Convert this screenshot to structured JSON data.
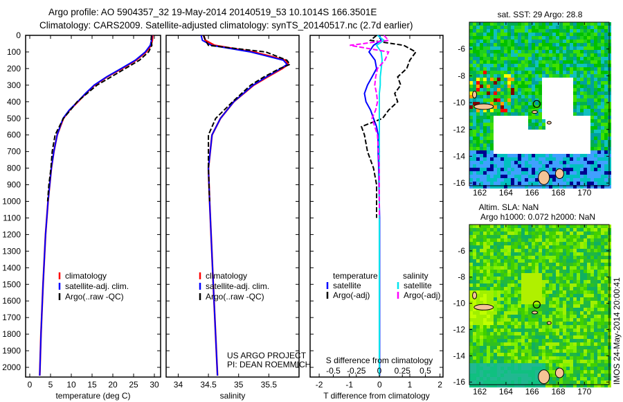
{
  "header": {
    "title_line1": "Argo profile: AO 5904357_32 19-May-2014 20140519_53 10.1014S 166.3501E",
    "title_line2": "Climatology: CARS2009. Satellite-adjusted climatology: synTS_20140517.nc (2.7d earlier)"
  },
  "colors": {
    "climatology": "#ff0000",
    "satellite": "#0000ff",
    "argo": "#000000",
    "sal_satellite": "#00e5ee",
    "sal_argo": "#ff00ff",
    "land": "#f5c496"
  },
  "depth_axis": {
    "ticks": [
      0,
      100,
      200,
      300,
      400,
      500,
      600,
      700,
      800,
      900,
      1000,
      1100,
      1200,
      1300,
      1400,
      1500,
      1600,
      1700,
      1800,
      1900,
      2000
    ],
    "range": [
      0,
      2060
    ]
  },
  "chart_data": [
    {
      "type": "line",
      "name": "temperature",
      "xlabel": "temperature (deg C)",
      "xlim": [
        -1,
        31.5
      ],
      "xticks": [
        0,
        5,
        10,
        15,
        20,
        25,
        30
      ],
      "depth": [
        0,
        30,
        60,
        100,
        150,
        200,
        250,
        300,
        350,
        400,
        450,
        500,
        600,
        700,
        800,
        900,
        1000,
        1200,
        1500,
        1800,
        2050
      ],
      "series": [
        {
          "name": "climatology",
          "values": [
            29.6,
            29.5,
            29.2,
            28.0,
            25.6,
            22.2,
            18.6,
            15.6,
            13.5,
            11.6,
            9.6,
            8.1,
            6.6,
            5.8,
            5.2,
            4.8,
            4.4,
            3.8,
            3.2,
            2.7,
            2.4
          ]
        },
        {
          "name": "satellite-adj. clim.",
          "values": [
            29.4,
            29.3,
            29.0,
            27.8,
            25.4,
            22.0,
            18.5,
            15.5,
            13.4,
            11.5,
            9.5,
            8.0,
            6.6,
            5.8,
            5.2,
            4.8,
            4.4,
            3.8,
            3.2,
            2.7,
            2.4
          ]
        },
        {
          "name": "Argo(..raw -QC)",
          "values": [
            29.3,
            29.2,
            29.4,
            28.6,
            26.4,
            23.0,
            19.6,
            16.2,
            13.8,
            11.4,
            9.8,
            8.1,
            6.1,
            5.4,
            5.1,
            4.6,
            4.3,
            null,
            null,
            null,
            null
          ]
        }
      ],
      "legend": [
        "climatology",
        "satellite-adj. clim.",
        "Argo(..raw -QC)"
      ]
    },
    {
      "type": "line",
      "name": "salinity",
      "xlabel": "salinity",
      "xlim": [
        33.8,
        36.0
      ],
      "xticks": [
        34,
        34.5,
        35,
        35.5
      ],
      "depth": [
        0,
        30,
        60,
        100,
        150,
        175,
        200,
        250,
        300,
        400,
        500,
        600,
        800,
        1000,
        1500,
        2050
      ],
      "series": [
        {
          "name": "climatology",
          "values": [
            34.42,
            34.45,
            34.6,
            35.25,
            35.78,
            35.82,
            35.72,
            35.48,
            35.25,
            34.92,
            34.7,
            34.56,
            34.5,
            34.52,
            34.58,
            34.65
          ]
        },
        {
          "name": "satellite-adj. clim.",
          "values": [
            34.38,
            34.4,
            34.55,
            35.2,
            35.74,
            35.8,
            35.7,
            35.46,
            35.24,
            34.92,
            34.7,
            34.56,
            34.5,
            34.52,
            34.58,
            34.65
          ]
        },
        {
          "name": "Argo(..raw -QC)",
          "values": [
            34.42,
            34.45,
            34.5,
            35.45,
            35.8,
            35.85,
            35.68,
            35.42,
            35.2,
            34.9,
            34.62,
            34.5,
            34.5,
            34.52,
            null,
            null
          ]
        }
      ],
      "legend": [
        "climatology",
        "satellite-adj. clim.",
        "Argo(..raw -QC)"
      ],
      "annotation": [
        "US ARGO PROJECT",
        "PI: DEAN ROEMMICH"
      ]
    },
    {
      "type": "line",
      "name": "difference",
      "xlabel": "T difference from climatology",
      "xlim": [
        -2.3,
        2.1
      ],
      "xticks": [
        -2,
        -1,
        0,
        1,
        2
      ],
      "xlabel2": "S difference from climatology",
      "xticks2": [
        -0.5,
        -0.25,
        0,
        0.25,
        0.5
      ],
      "depth": [
        0,
        30,
        60,
        100,
        150,
        200,
        250,
        300,
        350,
        400,
        450,
        500,
        550,
        600,
        700,
        800,
        900,
        1000,
        1100,
        1200,
        1500,
        2050
      ],
      "series": [
        {
          "name": "temperature satellite",
          "values": [
            0,
            0.05,
            -0.2,
            -0.35,
            -0.15,
            -0.1,
            -0.25,
            -0.4,
            -0.5,
            -0.45,
            -0.3,
            -0.2,
            -0.1,
            -0.05,
            -0.05,
            -0.03,
            -0.02,
            -0.01,
            0,
            0,
            0,
            0
          ]
        },
        {
          "name": "temperature Argo(-adj)",
          "values": [
            -0.1,
            -0.3,
            0.8,
            1.2,
            1.0,
            0.9,
            0.6,
            0.7,
            0.5,
            0.6,
            0.3,
            0.1,
            -0.6,
            -0.5,
            -0.4,
            -0.2,
            -0.1,
            -0.1,
            -0.1,
            null,
            null,
            null
          ]
        },
        {
          "name": "salinity satellite",
          "values": [
            -0.02,
            0.05,
            -0.03,
            0.02,
            0.03,
            0.02,
            0.01,
            0.01,
            0,
            0,
            0,
            0,
            0,
            0,
            0,
            0,
            0,
            0,
            0,
            0,
            0,
            0
          ]
        },
        {
          "name": "salinity Argo(-adj)",
          "values": [
            0.05,
            0.1,
            -0.32,
            0.1,
            0.06,
            -0.02,
            -0.04,
            -0.05,
            -0.03,
            -0.02,
            -0.04,
            -0.08,
            -0.05,
            -0.02,
            -0.01,
            0,
            0,
            0,
            0,
            null,
            null,
            null
          ]
        }
      ],
      "legend_headers": [
        "temperature",
        "salinity"
      ],
      "legend": [
        "satellite",
        "Argo(-adj)",
        "satellite",
        "Argo(-adj)"
      ]
    }
  ],
  "maps": {
    "sst": {
      "title": "sat. SST: 29 Argo: 28.8"
    },
    "sla": {
      "title1": "Altim. SLA: NaN",
      "title2": "Argo h1000: 0.072 h2000: NaN"
    },
    "lon_ticks": [
      162,
      164,
      166,
      168,
      170
    ],
    "lat_ticks": [
      -6,
      -8,
      -10,
      -12,
      -14,
      -16
    ],
    "float_position": {
      "lon": 166.35,
      "lat": -10.1
    }
  },
  "footer": {
    "stamp": "IMOS 24-May-2014 20:00:41"
  }
}
